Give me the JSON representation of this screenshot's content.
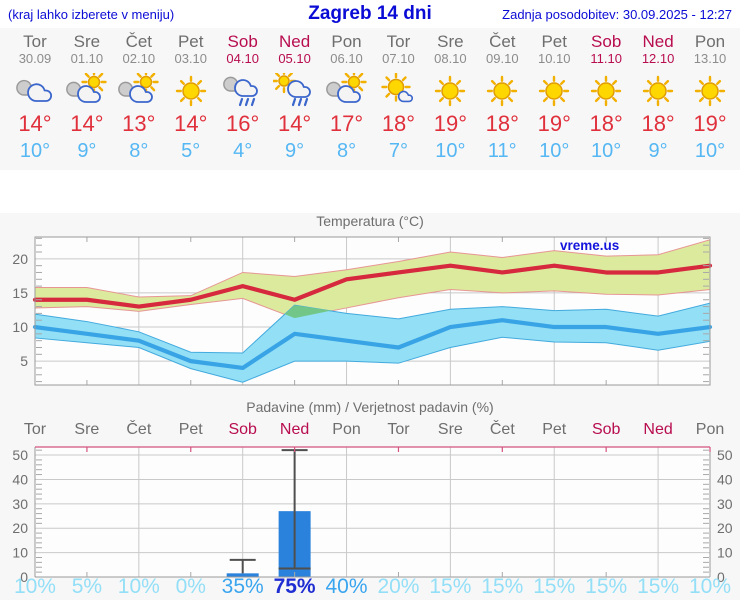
{
  "header": {
    "hint": "(kraj lahko izberete v meniju)",
    "title": "Zagreb 14 dni",
    "updated": "Zadnja posodobitev: 30.09.2025 - 12:27"
  },
  "days": [
    {
      "name": "Tor",
      "date": "30.09",
      "icon": "cloudy",
      "high": "14°",
      "low": "10°",
      "weekend": false
    },
    {
      "name": "Sre",
      "date": "01.10",
      "icon": "partly-cloudy",
      "high": "14°",
      "low": "9°",
      "weekend": false
    },
    {
      "name": "Čet",
      "date": "02.10",
      "icon": "partly-cloudy",
      "high": "13°",
      "low": "8°",
      "weekend": false
    },
    {
      "name": "Pet",
      "date": "03.10",
      "icon": "sunny",
      "high": "14°",
      "low": "5°",
      "weekend": false
    },
    {
      "name": "Sob",
      "date": "04.10",
      "icon": "rain",
      "high": "16°",
      "low": "4°",
      "weekend": true
    },
    {
      "name": "Ned",
      "date": "05.10",
      "icon": "sun-rain",
      "high": "14°",
      "low": "9°",
      "weekend": true
    },
    {
      "name": "Pon",
      "date": "06.10",
      "icon": "partly-cloudy",
      "high": "17°",
      "low": "8°",
      "weekend": false
    },
    {
      "name": "Tor",
      "date": "07.10",
      "icon": "mostly-sunny",
      "high": "18°",
      "low": "7°",
      "weekend": false
    },
    {
      "name": "Sre",
      "date": "08.10",
      "icon": "sunny",
      "high": "19°",
      "low": "10°",
      "weekend": false
    },
    {
      "name": "Čet",
      "date": "09.10",
      "icon": "sunny",
      "high": "18°",
      "low": "11°",
      "weekend": false
    },
    {
      "name": "Pet",
      "date": "10.10",
      "icon": "sunny",
      "high": "19°",
      "low": "10°",
      "weekend": false
    },
    {
      "name": "Sob",
      "date": "11.10",
      "icon": "sunny",
      "high": "18°",
      "low": "10°",
      "weekend": true
    },
    {
      "name": "Ned",
      "date": "12.10",
      "icon": "sunny",
      "high": "18°",
      "low": "9°",
      "weekend": true
    },
    {
      "name": "Pon",
      "date": "13.10",
      "icon": "sunny",
      "high": "19°",
      "low": "10°",
      "weekend": false
    }
  ],
  "chart_data": [
    {
      "type": "line",
      "title": "Temperatura (°C)",
      "watermark": "vreme.us",
      "x_day_labels": [
        "Tor",
        "Sre",
        "Čet",
        "Pet",
        "Sob",
        "Ned",
        "Pon",
        "Tor",
        "Sre",
        "Čet",
        "Pet",
        "Sob",
        "Ned",
        "Pon"
      ],
      "ylim": [
        1.5,
        23.2
      ],
      "yticks": [
        5,
        10,
        15,
        20
      ],
      "grid": true,
      "series": [
        {
          "name": "max-temp",
          "color": "#d6293e",
          "width": 4.2,
          "values": [
            14,
            14,
            13,
            14,
            16,
            14,
            17,
            18,
            19,
            18,
            19,
            18,
            18,
            19
          ]
        },
        {
          "name": "min-temp",
          "color": "#38a4e6",
          "width": 4.2,
          "values": [
            10,
            9,
            8,
            5,
            4,
            9,
            8,
            7,
            10,
            11,
            10,
            10,
            9,
            10
          ]
        }
      ],
      "bands": [
        {
          "name": "max-temp-band",
          "fill": "#dcea9e",
          "edge": "#e79694",
          "upper": [
            15.8,
            15.8,
            14.4,
            14.6,
            18,
            17.4,
            18.4,
            19.6,
            21,
            20.2,
            21.2,
            20.4,
            20.6,
            22.8
          ],
          "lower": [
            12.8,
            13,
            12.3,
            13.3,
            14.2,
            11.3,
            12.8,
            14.3,
            15.5,
            15,
            15.3,
            14.8,
            14.7,
            15.5
          ]
        },
        {
          "name": "min-temp-band",
          "fill": "#93dff5",
          "edge": "#42aade",
          "upper": [
            11.9,
            10.8,
            9.3,
            6.3,
            6.2,
            13.2,
            12,
            11.2,
            12.6,
            13,
            12.4,
            12.6,
            11.6,
            13.5
          ],
          "lower": [
            8.4,
            7.7,
            7,
            3.9,
            1.9,
            5,
            5,
            4.7,
            7,
            8.5,
            7.8,
            7.7,
            6.6,
            7.9
          ]
        }
      ],
      "overlap": {
        "fill": "#72c788",
        "points": [
          [
            4.81,
            11.9
          ],
          [
            5,
            13.2
          ],
          [
            5.7,
            12.4
          ],
          [
            5,
            11.3
          ]
        ]
      }
    },
    {
      "type": "bar",
      "title": "Padavine (mm) / Verjetnost padavin (%)",
      "categories": [
        "Tor",
        "Sre",
        "Čet",
        "Pet",
        "Sob",
        "Ned",
        "Pon",
        "Tor",
        "Sre",
        "Čet",
        "Pet",
        "Sob",
        "Ned",
        "Pon"
      ],
      "values": [
        0,
        0,
        0,
        0,
        1.5,
        27,
        0,
        0,
        0,
        0,
        0,
        0,
        0,
        0
      ],
      "whiskers": [
        {
          "day_index": 4,
          "low": 1.5,
          "high": 7,
          "cap_low": false
        },
        {
          "day_index": 5,
          "low": 3.5,
          "high": 52,
          "cap_low": true
        }
      ],
      "probabilities": [
        {
          "value": "10%",
          "level": "light"
        },
        {
          "value": "5%",
          "level": "light"
        },
        {
          "value": "10%",
          "level": "light"
        },
        {
          "value": "0%",
          "level": "light"
        },
        {
          "value": "35%",
          "level": "mid"
        },
        {
          "value": "75%",
          "level": "dark"
        },
        {
          "value": "40%",
          "level": "mid"
        },
        {
          "value": "20%",
          "level": "light"
        },
        {
          "value": "15%",
          "level": "light"
        },
        {
          "value": "15%",
          "level": "light"
        },
        {
          "value": "15%",
          "level": "light"
        },
        {
          "value": "15%",
          "level": "light"
        },
        {
          "value": "15%",
          "level": "light"
        },
        {
          "value": "10%",
          "level": "light"
        }
      ],
      "ylim": [
        0,
        53.3
      ],
      "yticks": [
        0,
        10,
        20,
        30,
        40,
        50
      ],
      "grid": true,
      "bar_color": "#2b82dc",
      "whisker_color": "#4f4f4f",
      "top_border_color": "#d4537f"
    }
  ],
  "colors": {
    "header_blue": "#0b0bd6",
    "weekend": "#b80d4f",
    "weekday_gray": "#6e6e6e",
    "high_temp": "#e0303c",
    "low_temp": "#55b7f3",
    "gridline": "#c9c9c9",
    "chart_border": "#9a9a9a",
    "minor_tick": "#a8a8a8",
    "axis_text": "#6e6e6e",
    "watermark_blue": "#1414dc",
    "prob_light": "#93dff7",
    "prob_mid": "#3aa5ef",
    "prob_dark": "#1f2ed2"
  }
}
